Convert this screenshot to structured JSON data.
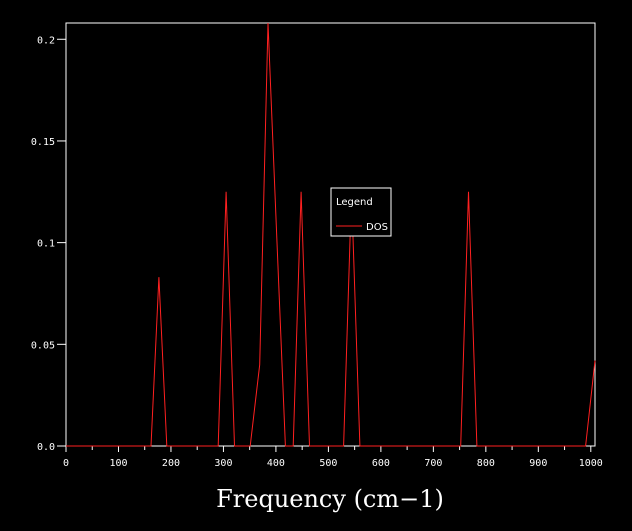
{
  "chart_data": {
    "type": "line",
    "title": "",
    "xlabel": "Frequency (cm−1)",
    "ylabel": "",
    "xlim": [
      0,
      1008
    ],
    "ylim": [
      0,
      0.208
    ],
    "x_ticks": [
      0,
      100,
      200,
      300,
      400,
      500,
      600,
      700,
      800,
      900,
      1000
    ],
    "x_tick_labels": [
      "0",
      "100",
      "200",
      "300",
      "400",
      "500",
      "600",
      "700",
      "800",
      "900",
      "1000"
    ],
    "y_ticks": [
      0,
      0.05,
      0.1,
      0.15,
      0.2
    ],
    "y_tick_labels": [
      "0.0",
      "0.05",
      "0.1",
      "0.15",
      "0.2"
    ],
    "grid": false,
    "legend": {
      "title": "Legend",
      "placement": "center-right"
    },
    "series": [
      {
        "name": "DOS",
        "color": "#ff2020",
        "points": [
          [
            0,
            0
          ],
          [
            162,
            0
          ],
          [
            177,
            0.083
          ],
          [
            192,
            0
          ],
          [
            290,
            0
          ],
          [
            305,
            0.125
          ],
          [
            321,
            0
          ],
          [
            351,
            0
          ],
          [
            369,
            0.04
          ],
          [
            385,
            0.208
          ],
          [
            402,
            0.1
          ],
          [
            418,
            0
          ],
          [
            433,
            0
          ],
          [
            448,
            0.125
          ],
          [
            464,
            0
          ],
          [
            529,
            0
          ],
          [
            544,
            0.125
          ],
          [
            560,
            0
          ],
          [
            752,
            0
          ],
          [
            767,
            0.125
          ],
          [
            783,
            0
          ],
          [
            990,
            0
          ],
          [
            1008,
            0.042
          ]
        ]
      }
    ]
  }
}
